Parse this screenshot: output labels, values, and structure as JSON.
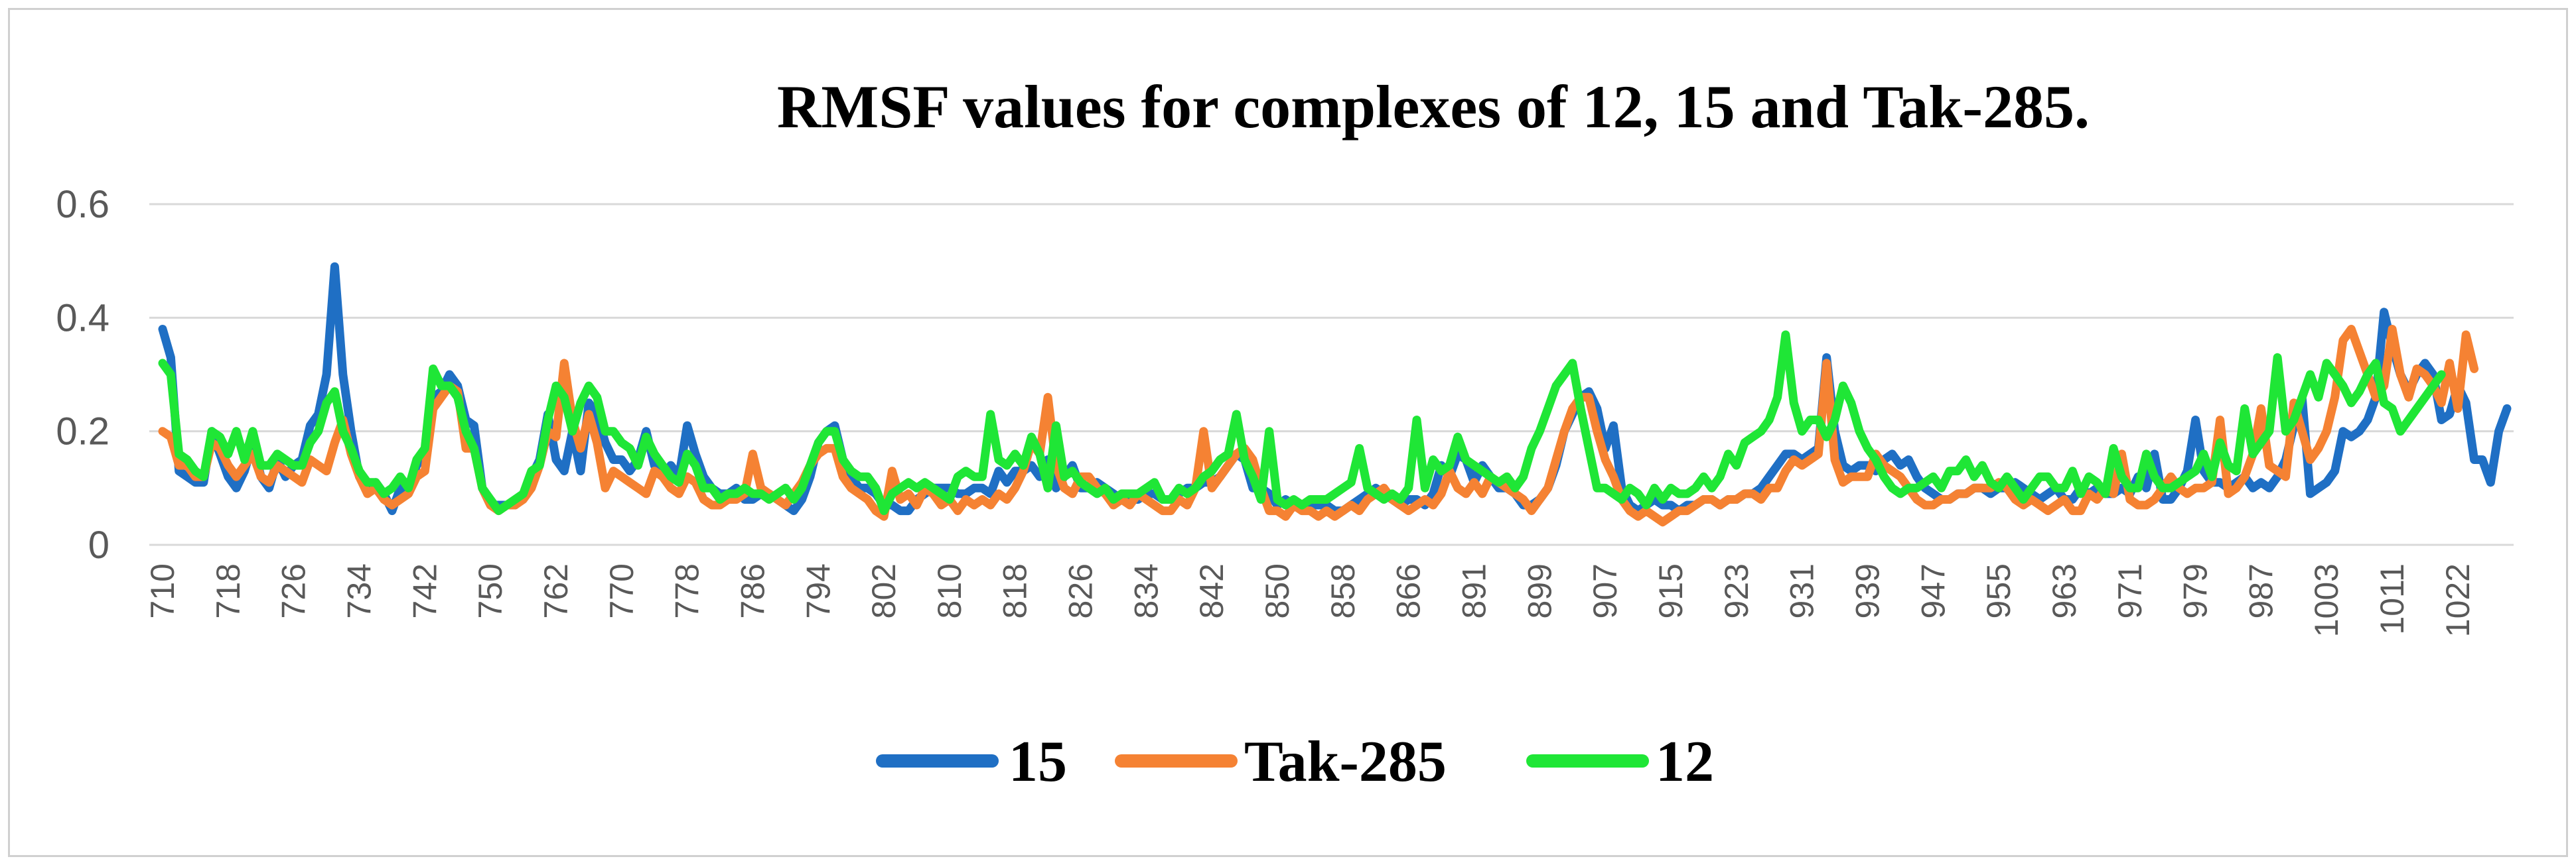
{
  "chart_data": {
    "type": "line",
    "title": "RMSF values for complexes of 12, 15 and Tak-285.",
    "xlabel": "",
    "ylabel": "",
    "ylim": [
      0,
      0.6
    ],
    "yticks": [
      "0",
      "0.2",
      "0.4",
      "0.6"
    ],
    "grid": true,
    "legend_position": "bottom",
    "x_tick_labels": [
      "710",
      "718",
      "726",
      "734",
      "742",
      "750",
      "762",
      "770",
      "778",
      "786",
      "794",
      "802",
      "810",
      "818",
      "826",
      "834",
      "842",
      "850",
      "858",
      "866",
      "891",
      "899",
      "907",
      "915",
      "923",
      "931",
      "939",
      "947",
      "955",
      "963",
      "971",
      "979",
      "987",
      "1003",
      "1011",
      "1022"
    ],
    "points_per_tick": 8,
    "series": [
      {
        "name": "15",
        "color": "#1f6fc4",
        "values": [
          0.38,
          0.33,
          0.13,
          0.12,
          0.11,
          0.11,
          0.2,
          0.16,
          0.12,
          0.1,
          0.13,
          0.18,
          0.12,
          0.1,
          0.15,
          0.12,
          0.14,
          0.15,
          0.21,
          0.23,
          0.3,
          0.49,
          0.3,
          0.2,
          0.12,
          0.1,
          0.11,
          0.09,
          0.06,
          0.1,
          0.1,
          0.14,
          0.16,
          0.26,
          0.27,
          0.3,
          0.28,
          0.22,
          0.21,
          0.1,
          0.07,
          0.07,
          0.07,
          0.07,
          0.09,
          0.12,
          0.15,
          0.23,
          0.15,
          0.13,
          0.2,
          0.13,
          0.25,
          0.23,
          0.18,
          0.15,
          0.15,
          0.13,
          0.15,
          0.2,
          0.14,
          0.12,
          0.14,
          0.12,
          0.21,
          0.16,
          0.12,
          0.1,
          0.09,
          0.09,
          0.1,
          0.08,
          0.08,
          0.09,
          0.09,
          0.08,
          0.07,
          0.06,
          0.08,
          0.12,
          0.18,
          0.2,
          0.21,
          0.15,
          0.12,
          0.1,
          0.1,
          0.09,
          0.07,
          0.07,
          0.06,
          0.06,
          0.08,
          0.09,
          0.1,
          0.1,
          0.1,
          0.09,
          0.09,
          0.1,
          0.1,
          0.09,
          0.13,
          0.11,
          0.13,
          0.13,
          0.14,
          0.12,
          0.15,
          0.1,
          0.12,
          0.14,
          0.1,
          0.1,
          0.11,
          0.1,
          0.09,
          0.08,
          0.08,
          0.08,
          0.09,
          0.09,
          0.08,
          0.08,
          0.09,
          0.1,
          0.1,
          0.11,
          0.11,
          0.12,
          0.14,
          0.16,
          0.15,
          0.1,
          0.1,
          0.09,
          0.07,
          0.08,
          0.07,
          0.07,
          0.07,
          0.07,
          0.07,
          0.06,
          0.06,
          0.07,
          0.08,
          0.09,
          0.1,
          0.09,
          0.08,
          0.07,
          0.08,
          0.08,
          0.07,
          0.09,
          0.14,
          0.12,
          0.16,
          0.15,
          0.11,
          0.14,
          0.12,
          0.1,
          0.1,
          0.09,
          0.07,
          0.07,
          0.08,
          0.1,
          0.14,
          0.2,
          0.23,
          0.26,
          0.27,
          0.24,
          0.17,
          0.21,
          0.1,
          0.07,
          0.06,
          0.07,
          0.08,
          0.07,
          0.07,
          0.06,
          0.07,
          0.07,
          0.08,
          0.08,
          0.07,
          0.08,
          0.08,
          0.09,
          0.09,
          0.1,
          0.12,
          0.14,
          0.16,
          0.16,
          0.15,
          0.16,
          0.17,
          0.33,
          0.2,
          0.14,
          0.13,
          0.14,
          0.14,
          0.13,
          0.15,
          0.16,
          0.14,
          0.15,
          0.12,
          0.1,
          0.09,
          0.08,
          0.08,
          0.09,
          0.09,
          0.1,
          0.1,
          0.09,
          0.1,
          0.1,
          0.11,
          0.1,
          0.09,
          0.08,
          0.09,
          0.1,
          0.08,
          0.08,
          0.1,
          0.09,
          0.1,
          0.09,
          0.09,
          0.1,
          0.09,
          0.12,
          0.1,
          0.16,
          0.08,
          0.08,
          0.1,
          0.13,
          0.22,
          0.13,
          0.11,
          0.11,
          0.1,
          0.11,
          0.12,
          0.1,
          0.11,
          0.1,
          0.12,
          0.15,
          0.21,
          0.26,
          0.09,
          0.1,
          0.11,
          0.13,
          0.2,
          0.19,
          0.2,
          0.22,
          0.26,
          0.41,
          0.35,
          0.3,
          0.27,
          0.3,
          0.32,
          0.3,
          0.22,
          0.23,
          0.28,
          0.25,
          0.15,
          0.15,
          0.11,
          0.2,
          0.24
        ]
      },
      {
        "name": "Tak-285",
        "color": "#f58233",
        "values": [
          0.2,
          0.19,
          0.14,
          0.14,
          0.12,
          0.12,
          0.18,
          0.17,
          0.14,
          0.12,
          0.14,
          0.16,
          0.12,
          0.11,
          0.14,
          0.13,
          0.12,
          0.11,
          0.15,
          0.14,
          0.13,
          0.18,
          0.22,
          0.16,
          0.12,
          0.09,
          0.1,
          0.08,
          0.07,
          0.08,
          0.09,
          0.12,
          0.13,
          0.24,
          0.26,
          0.28,
          0.27,
          0.17,
          0.17,
          0.1,
          0.07,
          0.06,
          0.07,
          0.07,
          0.08,
          0.1,
          0.14,
          0.2,
          0.19,
          0.32,
          0.22,
          0.17,
          0.23,
          0.18,
          0.1,
          0.13,
          0.12,
          0.11,
          0.1,
          0.09,
          0.13,
          0.12,
          0.1,
          0.09,
          0.12,
          0.11,
          0.08,
          0.07,
          0.07,
          0.08,
          0.08,
          0.09,
          0.16,
          0.1,
          0.09,
          0.08,
          0.07,
          0.09,
          0.11,
          0.14,
          0.16,
          0.17,
          0.17,
          0.12,
          0.1,
          0.09,
          0.08,
          0.06,
          0.05,
          0.13,
          0.08,
          0.09,
          0.07,
          0.1,
          0.09,
          0.07,
          0.08,
          0.06,
          0.08,
          0.07,
          0.08,
          0.07,
          0.09,
          0.08,
          0.1,
          0.13,
          0.18,
          0.16,
          0.26,
          0.14,
          0.1,
          0.09,
          0.12,
          0.12,
          0.1,
          0.09,
          0.07,
          0.08,
          0.07,
          0.09,
          0.08,
          0.07,
          0.06,
          0.06,
          0.08,
          0.07,
          0.1,
          0.2,
          0.1,
          0.12,
          0.14,
          0.16,
          0.17,
          0.15,
          0.1,
          0.06,
          0.06,
          0.05,
          0.07,
          0.06,
          0.06,
          0.05,
          0.06,
          0.05,
          0.06,
          0.07,
          0.06,
          0.08,
          0.09,
          0.1,
          0.08,
          0.07,
          0.06,
          0.07,
          0.08,
          0.07,
          0.09,
          0.13,
          0.1,
          0.09,
          0.11,
          0.09,
          0.12,
          0.11,
          0.1,
          0.09,
          0.08,
          0.06,
          0.08,
          0.1,
          0.15,
          0.2,
          0.24,
          0.26,
          0.26,
          0.2,
          0.15,
          0.12,
          0.08,
          0.06,
          0.05,
          0.06,
          0.05,
          0.04,
          0.05,
          0.06,
          0.06,
          0.07,
          0.08,
          0.08,
          0.07,
          0.08,
          0.08,
          0.09,
          0.09,
          0.08,
          0.1,
          0.1,
          0.13,
          0.15,
          0.14,
          0.15,
          0.16,
          0.32,
          0.15,
          0.11,
          0.12,
          0.12,
          0.12,
          0.16,
          0.14,
          0.13,
          0.12,
          0.1,
          0.08,
          0.07,
          0.07,
          0.08,
          0.08,
          0.09,
          0.09,
          0.1,
          0.1,
          0.1,
          0.11,
          0.1,
          0.08,
          0.07,
          0.08,
          0.07,
          0.06,
          0.07,
          0.08,
          0.06,
          0.06,
          0.09,
          0.08,
          0.1,
          0.09,
          0.16,
          0.08,
          0.07,
          0.07,
          0.08,
          0.1,
          0.12,
          0.1,
          0.09,
          0.1,
          0.1,
          0.11,
          0.22,
          0.09,
          0.1,
          0.12,
          0.16,
          0.24,
          0.14,
          0.13,
          0.12,
          0.25,
          0.2,
          0.15,
          0.17,
          0.2,
          0.26,
          0.36,
          0.38,
          0.34,
          0.3,
          0.26,
          0.28,
          0.38,
          0.3,
          0.26,
          0.31,
          0.3,
          0.28,
          0.25,
          0.32,
          0.24,
          0.37,
          0.31
        ]
      },
      {
        "name": "12",
        "color": "#1fe636",
        "values": [
          0.32,
          0.3,
          0.16,
          0.15,
          0.13,
          0.12,
          0.2,
          0.19,
          0.16,
          0.2,
          0.15,
          0.2,
          0.14,
          0.14,
          0.16,
          0.15,
          0.14,
          0.14,
          0.18,
          0.2,
          0.25,
          0.27,
          0.2,
          0.17,
          0.13,
          0.11,
          0.11,
          0.09,
          0.1,
          0.12,
          0.1,
          0.15,
          0.17,
          0.31,
          0.28,
          0.28,
          0.26,
          0.2,
          0.17,
          0.1,
          0.08,
          0.06,
          0.07,
          0.08,
          0.09,
          0.13,
          0.14,
          0.22,
          0.28,
          0.26,
          0.2,
          0.25,
          0.28,
          0.26,
          0.2,
          0.2,
          0.18,
          0.17,
          0.14,
          0.19,
          0.16,
          0.14,
          0.12,
          0.11,
          0.16,
          0.14,
          0.1,
          0.1,
          0.08,
          0.09,
          0.09,
          0.1,
          0.09,
          0.09,
          0.08,
          0.09,
          0.1,
          0.08,
          0.1,
          0.14,
          0.18,
          0.2,
          0.2,
          0.15,
          0.13,
          0.12,
          0.12,
          0.1,
          0.06,
          0.09,
          0.1,
          0.11,
          0.1,
          0.11,
          0.1,
          0.09,
          0.08,
          0.12,
          0.13,
          0.12,
          0.12,
          0.23,
          0.15,
          0.14,
          0.16,
          0.14,
          0.19,
          0.16,
          0.1,
          0.21,
          0.12,
          0.13,
          0.11,
          0.1,
          0.09,
          0.1,
          0.08,
          0.09,
          0.09,
          0.09,
          0.1,
          0.11,
          0.08,
          0.08,
          0.1,
          0.09,
          0.1,
          0.12,
          0.13,
          0.15,
          0.16,
          0.23,
          0.15,
          0.12,
          0.08,
          0.2,
          0.08,
          0.07,
          0.08,
          0.07,
          0.08,
          0.08,
          0.08,
          0.09,
          0.1,
          0.11,
          0.17,
          0.1,
          0.09,
          0.08,
          0.09,
          0.08,
          0.1,
          0.22,
          0.1,
          0.15,
          0.13,
          0.14,
          0.19,
          0.15,
          0.14,
          0.13,
          0.12,
          0.11,
          0.12,
          0.1,
          0.12,
          0.17,
          0.2,
          0.24,
          0.28,
          0.3,
          0.32,
          0.24,
          0.17,
          0.1,
          0.1,
          0.09,
          0.08,
          0.1,
          0.09,
          0.07,
          0.1,
          0.08,
          0.1,
          0.09,
          0.09,
          0.1,
          0.12,
          0.1,
          0.12,
          0.16,
          0.14,
          0.18,
          0.19,
          0.2,
          0.22,
          0.26,
          0.37,
          0.25,
          0.2,
          0.22,
          0.22,
          0.19,
          0.22,
          0.28,
          0.25,
          0.2,
          0.17,
          0.15,
          0.12,
          0.1,
          0.09,
          0.1,
          0.1,
          0.11,
          0.12,
          0.1,
          0.13,
          0.13,
          0.15,
          0.12,
          0.14,
          0.11,
          0.1,
          0.12,
          0.1,
          0.08,
          0.1,
          0.12,
          0.12,
          0.1,
          0.1,
          0.13,
          0.09,
          0.12,
          0.11,
          0.09,
          0.17,
          0.12,
          0.1,
          0.1,
          0.16,
          0.12,
          0.1,
          0.1,
          0.11,
          0.12,
          0.13,
          0.16,
          0.12,
          0.18,
          0.14,
          0.13,
          0.24,
          0.16,
          0.18,
          0.2,
          0.33,
          0.2,
          0.22,
          0.26,
          0.3,
          0.26,
          0.32,
          0.3,
          0.28,
          0.25,
          0.27,
          0.3,
          0.32,
          0.25,
          0.24,
          0.2,
          0.22,
          0.24,
          0.26,
          0.28,
          0.3
        ]
      }
    ]
  }
}
